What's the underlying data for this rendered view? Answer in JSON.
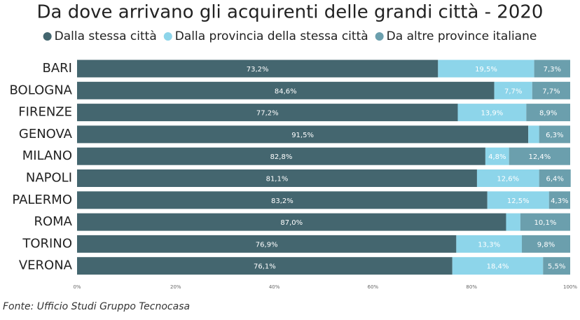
{
  "chart_data": {
    "type": "stacked-bar-horizontal",
    "title": "Da dove arrivano gli acquirenti delle grandi città - 2020",
    "categories": [
      "BARI",
      "BOLOGNA",
      "FIRENZE",
      "GENOVA",
      "MILANO",
      "NAPOLI",
      "PALERMO",
      "ROMA",
      "TORINO",
      "VERONA"
    ],
    "series": [
      {
        "name": "Dalla stessa città",
        "color": "#44666f",
        "values": [
          73.2,
          84.6,
          77.2,
          91.5,
          82.8,
          81.1,
          83.2,
          87.0,
          76.9,
          76.1
        ],
        "value_labels": [
          "73,2%",
          "84,6%",
          "77,2%",
          "91,5%",
          "82,8%",
          "81,1%",
          "83,2%",
          "87,0%",
          "76,9%",
          "76,1%"
        ]
      },
      {
        "name": "Dalla provincia della stessa città",
        "color": "#8dd5ea",
        "values": [
          19.5,
          7.7,
          13.9,
          2.2,
          4.8,
          12.6,
          12.5,
          2.9,
          13.3,
          18.4
        ],
        "value_labels": [
          "19,5%",
          "7,7%",
          "13,9%",
          null,
          "4,8%",
          "12,6%",
          "12,5%",
          null,
          "13,3%",
          "18,4%"
        ]
      },
      {
        "name": "Da altre province italiane",
        "color": "#6b9fad",
        "values": [
          7.3,
          7.7,
          8.9,
          6.3,
          12.4,
          6.4,
          4.3,
          10.1,
          9.8,
          5.5
        ],
        "value_labels": [
          "7,3%",
          "7,7%",
          "8,9%",
          "6,3%",
          "12,4%",
          "6,4%",
          "4,3%",
          "10,1%",
          "9,8%",
          "5,5%"
        ]
      }
    ],
    "xlim": [
      0,
      100
    ],
    "xticks": [
      {
        "value": 0,
        "label": "0%"
      },
      {
        "value": 20,
        "label": "20%"
      },
      {
        "value": 40,
        "label": "40%"
      },
      {
        "value": 60,
        "label": "60%"
      },
      {
        "value": 80,
        "label": "80%"
      },
      {
        "value": 100,
        "label": "100%"
      }
    ],
    "source": "Fonte: Ufficio Studi Gruppo Tecnocasa"
  }
}
